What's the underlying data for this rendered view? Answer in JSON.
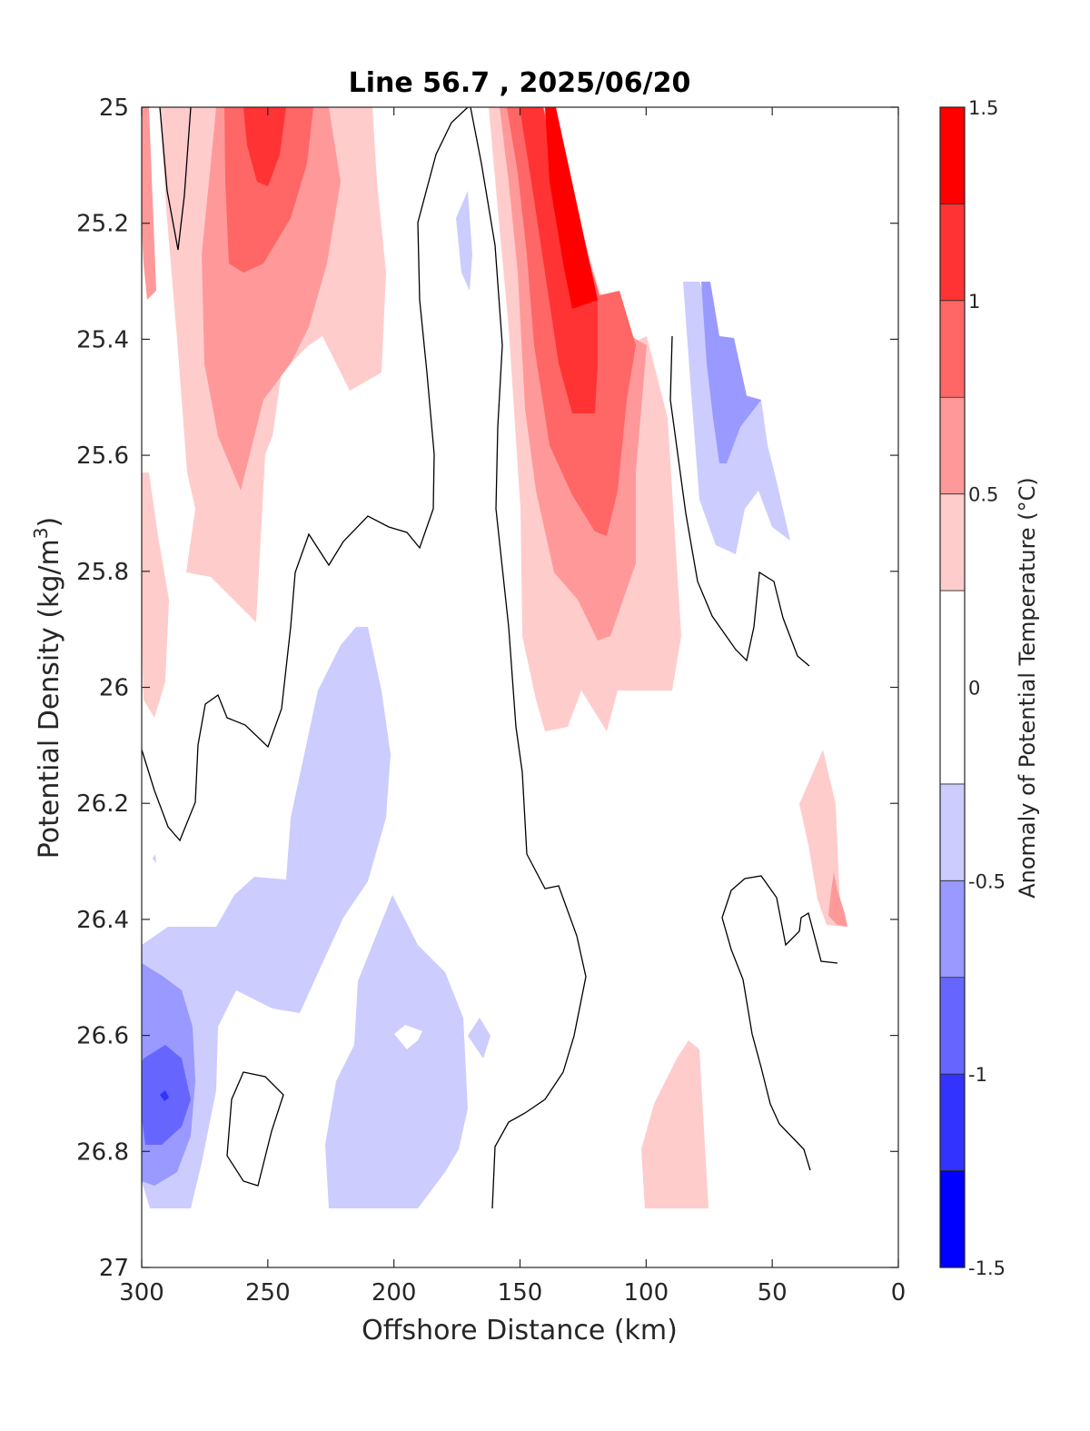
{
  "chart_data": {
    "type": "contour",
    "title": "Line 56.7 , 2025/06/20",
    "xlabel": "Offshore Distance (km)",
    "ylabel": "Potential Density (kg/m3)",
    "ylabel_base": "Potential Density (kg/m",
    "ylabel_sup": "3",
    "ylabel_close": ")",
    "xlim": [
      300,
      0
    ],
    "ylim": [
      25,
      27
    ],
    "x_reversed": true,
    "y_reversed": true,
    "xticks": [
      300,
      250,
      200,
      150,
      100,
      50,
      0
    ],
    "xtick_labels": [
      "300",
      "250",
      "200",
      "150",
      "100",
      "50",
      "0"
    ],
    "yticks": [
      25,
      25.2,
      25.4,
      25.6,
      25.8,
      26,
      26.2,
      26.4,
      26.6,
      26.8,
      27
    ],
    "ytick_labels": [
      "25",
      "25.2",
      "25.4",
      "25.6",
      "25.8",
      "26",
      "26.2",
      "26.4",
      "26.6",
      "26.8",
      "27"
    ],
    "grid": false,
    "colorbar": {
      "label": "Anomaly of Potential Temperature (°C)",
      "range": [
        -1.5,
        1.5
      ],
      "tick_values": [
        1.5,
        1,
        0.5,
        0,
        -0.5,
        -1,
        -1.5
      ],
      "tick_labels": [
        "1.5",
        "1",
        "0.5",
        "0",
        "-0.5",
        "-1",
        "-1.5"
      ],
      "levels": [
        -1.5,
        -1.25,
        -1,
        -0.75,
        -0.5,
        -0.25,
        0.25,
        0.5,
        0.75,
        1,
        1.25,
        1.5
      ],
      "colors": [
        "#0000ff",
        "#3333ff",
        "#6666ff",
        "#9999ff",
        "#ccccff",
        "#ffffff",
        "#ffcccc",
        "#ff9999",
        "#ff6666",
        "#ff3333",
        "#ff0000"
      ]
    },
    "contour_line_level": 0,
    "contour_line_color": "#000000",
    "regions": [
      {
        "level": 0.25,
        "color": "#ffcccc",
        "points": [
          [
            300,
            25
          ],
          [
            280,
            25
          ],
          [
            276,
            25.3
          ],
          [
            272,
            25.6
          ],
          [
            262,
            25.7
          ],
          [
            255,
            25.8
          ],
          [
            248,
            25.85
          ],
          [
            240,
            25.9
          ],
          [
            245,
            25.45
          ],
          [
            255,
            25.2
          ],
          [
            255,
            25
          ],
          [
            222,
            25
          ],
          [
            215,
            25.5
          ],
          [
            215,
            25.7
          ],
          [
            228,
            25.7
          ],
          [
            240,
            25.55
          ],
          [
            240,
            25.4
          ],
          [
            222,
            25.3
          ],
          [
            214,
            25.15
          ],
          [
            210,
            25
          ],
          [
            220,
            25
          ],
          [
            235,
            25
          ],
          [
            230,
            25.3
          ],
          [
            220,
            25.45
          ],
          [
            215,
            25.5
          ],
          [
            212,
            25.45
          ],
          [
            200,
            25.45
          ],
          [
            195,
            25.35
          ],
          [
            198,
            25.25
          ],
          [
            208,
            25
          ],
          [
            220,
            25
          ],
          [
            230,
            25.45
          ],
          [
            240,
            25.65
          ],
          [
            250,
            25.8
          ],
          [
            275,
            25.7
          ],
          [
            288,
            25.5
          ],
          [
            300,
            25.3
          ]
        ]
      },
      {
        "level": 0.25,
        "color": "#ffcccc",
        "points": [
          [
            300,
            25.6
          ],
          [
            295,
            25.6
          ],
          [
            292,
            25.9
          ],
          [
            294,
            26.05
          ],
          [
            300,
            26.05
          ]
        ]
      },
      {
        "level": 0.25,
        "color": "#ffcccc",
        "points": [
          [
            155,
            25
          ],
          [
            145,
            25.3
          ],
          [
            142,
            25.6
          ],
          [
            142,
            25.8
          ],
          [
            145,
            26.05
          ],
          [
            140,
            26.07
          ],
          [
            135,
            25.98
          ],
          [
            128,
            26.0
          ],
          [
            115,
            26.0
          ],
          [
            107,
            25.95
          ],
          [
            97,
            25.7
          ],
          [
            100,
            25.4
          ],
          [
            105,
            25.4
          ],
          [
            112,
            25.3
          ],
          [
            118,
            25.15
          ],
          [
            125,
            25
          ],
          [
            140,
            25
          ]
        ]
      },
      {
        "level": 0.25,
        "color": "#ffcccc",
        "points": [
          [
            40,
            26.2
          ],
          [
            36,
            26.1
          ],
          [
            27,
            26.2
          ],
          [
            25,
            26.35
          ],
          [
            22,
            26.4
          ],
          [
            25,
            26.43
          ],
          [
            28,
            26.41
          ],
          [
            32,
            26.38
          ],
          [
            35,
            26.3
          ]
        ]
      },
      {
        "level": 0.25,
        "color": "#ffcccc",
        "points": [
          [
            100,
            26.9
          ],
          [
            98,
            26.78
          ],
          [
            90,
            26.65
          ],
          [
            83,
            26.62
          ],
          [
            79,
            26.65
          ],
          [
            76,
            26.9
          ]
        ]
      }
    ]
  }
}
